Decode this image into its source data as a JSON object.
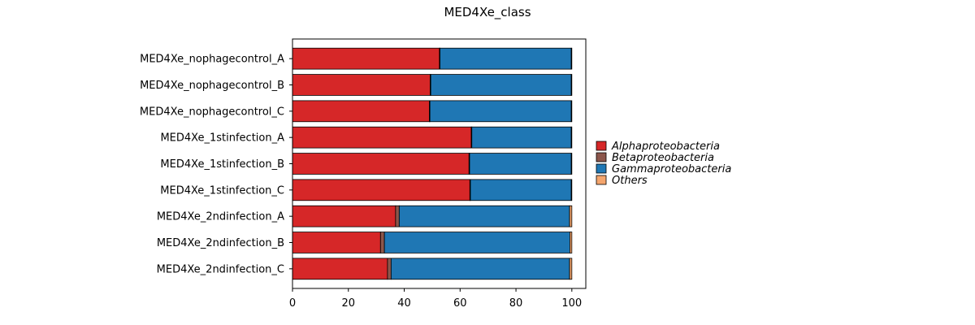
{
  "chart_data": {
    "type": "bar",
    "orientation": "horizontal",
    "stacked": true,
    "title": "MED4Xe_class",
    "xlabel": "",
    "ylabel": "",
    "xlim": [
      0,
      105
    ],
    "xticks": [
      0,
      20,
      40,
      60,
      80,
      100
    ],
    "grid": false,
    "legend_position": "right",
    "categories": [
      "MED4Xe_nophagecontrol_A",
      "MED4Xe_nophagecontrol_B",
      "MED4Xe_nophagecontrol_C",
      "MED4Xe_1stinfection_A",
      "MED4Xe_1stinfection_B",
      "MED4Xe_1stinfection_C",
      "MED4Xe_2ndinfection_A",
      "MED4Xe_2ndinfection_B",
      "MED4Xe_2ndinfection_C"
    ],
    "series": [
      {
        "name": "Alphaproteobacteria",
        "color": "#d62728",
        "values": [
          52.6,
          49.3,
          49.0,
          64.0,
          63.2,
          63.5,
          36.9,
          31.5,
          34.0
        ]
      },
      {
        "name": "Betaproteobacteria",
        "color": "#8c564b",
        "values": [
          0.2,
          0.2,
          0.2,
          0.2,
          0.2,
          0.2,
          1.3,
          1.4,
          1.3
        ]
      },
      {
        "name": "Gammaproteobacteria",
        "color": "#1f77b4",
        "values": [
          47.0,
          50.3,
          50.6,
          35.6,
          36.4,
          36.1,
          61.0,
          66.4,
          63.9
        ]
      },
      {
        "name": "Others",
        "color": "#f4a56d",
        "values": [
          0.2,
          0.2,
          0.2,
          0.2,
          0.2,
          0.2,
          0.8,
          0.7,
          0.8
        ]
      }
    ]
  }
}
